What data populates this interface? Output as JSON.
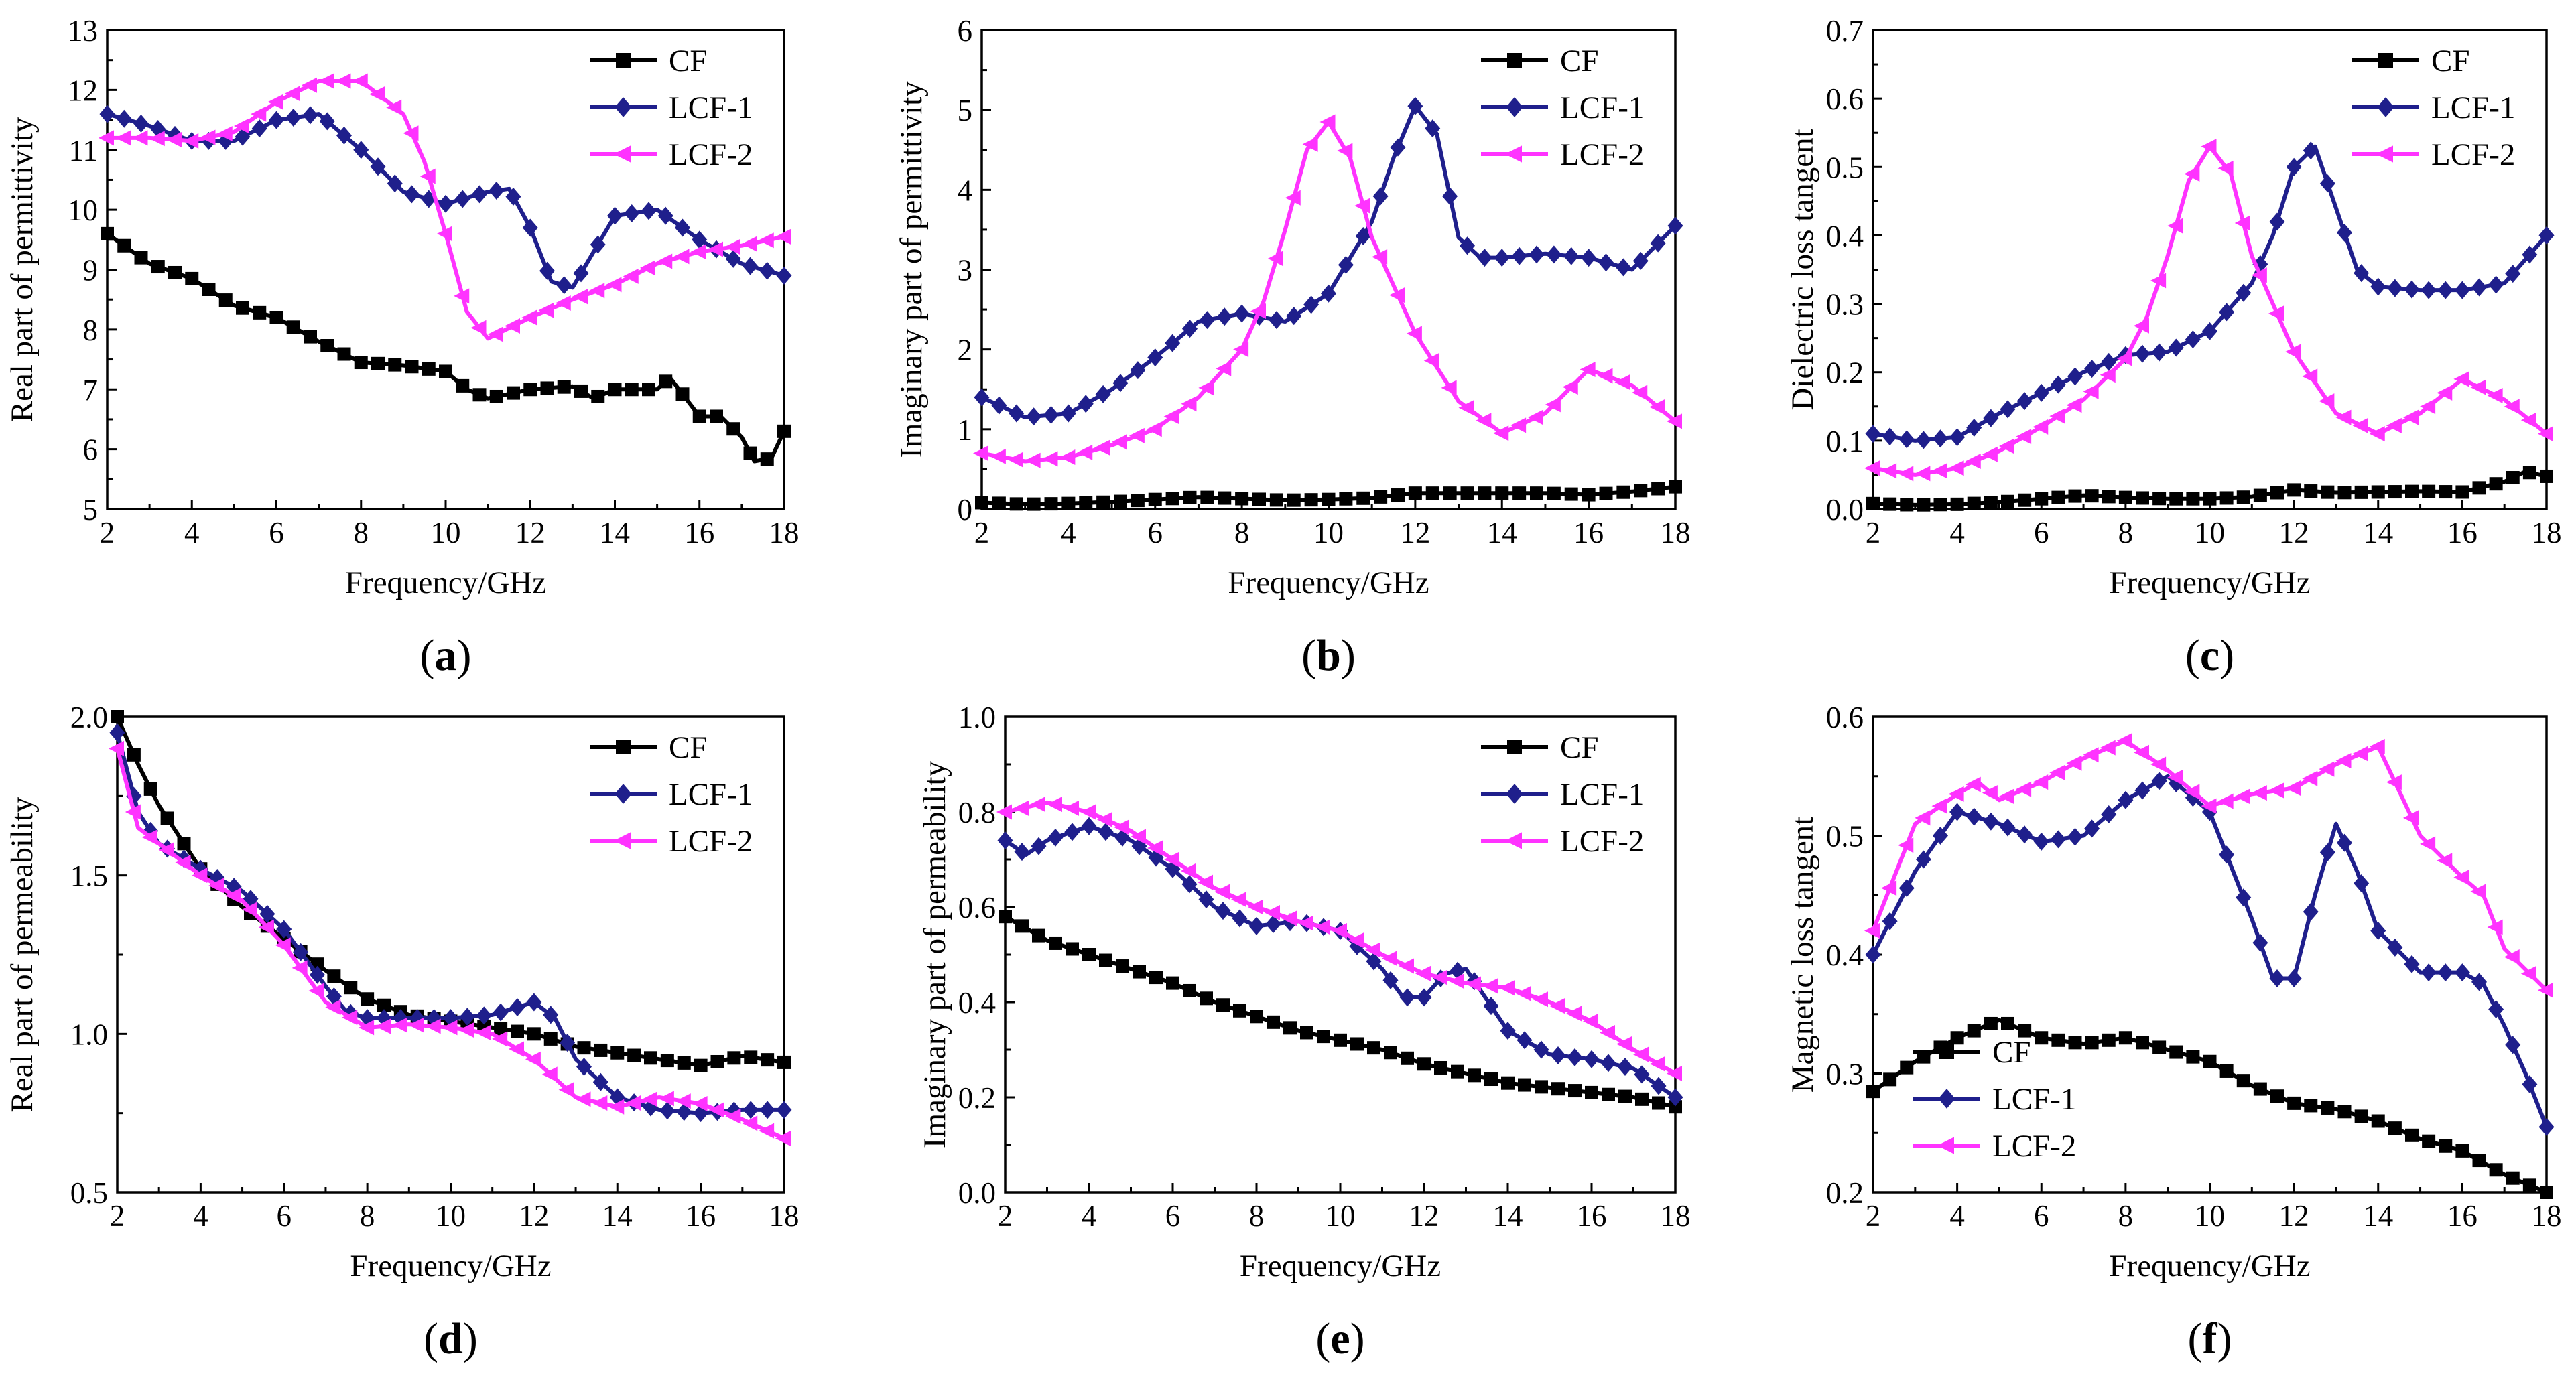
{
  "chart_data": [
    {
      "panel": "(a)",
      "panel_letter": "a",
      "type": "line",
      "xlabel": "Frequency/GHz",
      "ylabel": "Real part of permittivity",
      "xlim": [
        2,
        18
      ],
      "ylim": [
        5,
        13
      ],
      "xticks": [
        2,
        4,
        6,
        8,
        10,
        12,
        14,
        16,
        18
      ],
      "yticks": [
        5,
        6,
        7,
        8,
        9,
        10,
        11,
        12,
        13
      ],
      "legend_position": "top-right",
      "series": [
        {
          "name": "CF",
          "color": "#000000",
          "marker": "square",
          "x": [
            2,
            3,
            4,
            5,
            6,
            7,
            8,
            9,
            10,
            10.5,
            11,
            12,
            13,
            13.5,
            14,
            15,
            15.3,
            16,
            16.5,
            17,
            17.3,
            17.7,
            18
          ],
          "y": [
            9.6,
            9.1,
            8.85,
            8.4,
            8.2,
            7.8,
            7.45,
            7.4,
            7.3,
            7.0,
            6.85,
            7.0,
            7.05,
            6.85,
            7.0,
            7.0,
            7.2,
            6.55,
            6.55,
            6.2,
            5.8,
            5.85,
            6.3
          ]
        },
        {
          "name": "LCF-1",
          "color": "#1f1f8c",
          "marker": "diamond",
          "x": [
            2,
            3,
            4,
            5,
            6,
            7,
            8,
            9,
            10,
            11,
            11.5,
            12,
            12.5,
            13,
            14,
            15,
            16,
            17,
            18
          ],
          "y": [
            11.6,
            11.4,
            11.15,
            11.15,
            11.5,
            11.6,
            11.0,
            10.3,
            10.1,
            10.3,
            10.35,
            9.7,
            8.8,
            8.7,
            9.9,
            10.0,
            9.5,
            9.1,
            8.9
          ]
        },
        {
          "name": "LCF-2",
          "color": "#ff33ff",
          "marker": "triangle-left",
          "x": [
            2,
            3,
            4,
            5,
            6,
            7,
            8,
            9,
            9.5,
            10,
            10.5,
            11,
            12,
            13,
            14,
            15,
            16,
            17,
            18
          ],
          "y": [
            11.2,
            11.2,
            11.15,
            11.3,
            11.8,
            12.15,
            12.15,
            11.6,
            10.8,
            9.6,
            8.3,
            7.85,
            8.2,
            8.5,
            8.75,
            9.1,
            9.3,
            9.4,
            9.55
          ]
        }
      ]
    },
    {
      "panel": "(b)",
      "panel_letter": "b",
      "type": "line",
      "xlabel": "Frequency/GHz",
      "ylabel": "Imaginary part of permittivity",
      "xlim": [
        2,
        18
      ],
      "ylim": [
        0,
        6
      ],
      "xticks": [
        2,
        4,
        6,
        8,
        10,
        12,
        14,
        16,
        18
      ],
      "yticks": [
        0,
        1,
        2,
        3,
        4,
        5,
        6
      ],
      "legend_position": "top-right",
      "series": [
        {
          "name": "CF",
          "color": "#000000",
          "marker": "square",
          "x": [
            2,
            3,
            4,
            5,
            6,
            7,
            8,
            9,
            10,
            11,
            12,
            13,
            14,
            15,
            16,
            17,
            18
          ],
          "y": [
            0.08,
            0.06,
            0.07,
            0.09,
            0.12,
            0.15,
            0.13,
            0.11,
            0.12,
            0.14,
            0.2,
            0.2,
            0.2,
            0.2,
            0.18,
            0.22,
            0.28
          ]
        },
        {
          "name": "LCF-1",
          "color": "#1f1f8c",
          "marker": "diamond",
          "x": [
            2,
            3,
            4,
            5,
            6,
            7,
            8,
            9,
            10,
            11,
            11.5,
            12,
            12.5,
            13,
            13.5,
            14,
            15,
            16,
            17,
            18
          ],
          "y": [
            1.4,
            1.15,
            1.2,
            1.5,
            1.9,
            2.35,
            2.45,
            2.35,
            2.7,
            3.6,
            4.4,
            5.05,
            4.7,
            3.4,
            3.15,
            3.15,
            3.2,
            3.15,
            3.0,
            3.55
          ]
        },
        {
          "name": "LCF-2",
          "color": "#ff33ff",
          "marker": "triangle-left",
          "x": [
            2,
            3,
            4,
            5,
            6,
            7,
            8,
            8.5,
            9,
            9.5,
            10,
            10.5,
            11,
            12,
            13,
            14,
            15,
            16,
            17,
            18
          ],
          "y": [
            0.7,
            0.6,
            0.65,
            0.8,
            1.0,
            1.4,
            2.0,
            2.6,
            3.5,
            4.5,
            4.85,
            4.4,
            3.4,
            2.2,
            1.35,
            0.95,
            1.2,
            1.75,
            1.55,
            1.1
          ]
        }
      ]
    },
    {
      "panel": "(c)",
      "panel_letter": "c",
      "type": "line",
      "xlabel": "Frequency/GHz",
      "ylabel": "Dielectric loss tangent",
      "xlim": [
        2,
        18
      ],
      "ylim": [
        0,
        0.7
      ],
      "xticks": [
        2,
        4,
        6,
        8,
        10,
        12,
        14,
        16,
        18
      ],
      "yticks": [
        0.0,
        0.1,
        0.2,
        0.3,
        0.4,
        0.5,
        0.6,
        0.7
      ],
      "ytick_labels": [
        "0.0",
        "0.1",
        "0.2",
        "0.3",
        "0.4",
        "0.5",
        "0.6",
        "0.7"
      ],
      "legend_position": "top-right",
      "series": [
        {
          "name": "CF",
          "color": "#000000",
          "marker": "square",
          "x": [
            2,
            3,
            4,
            5,
            6,
            7,
            8,
            9,
            10,
            11,
            12,
            13,
            14,
            15,
            16,
            17,
            17.5,
            18
          ],
          "y": [
            0.008,
            0.006,
            0.007,
            0.01,
            0.015,
            0.02,
            0.017,
            0.015,
            0.015,
            0.018,
            0.028,
            0.024,
            0.025,
            0.026,
            0.025,
            0.04,
            0.055,
            0.048
          ]
        },
        {
          "name": "LCF-1",
          "color": "#1f1f8c",
          "marker": "diamond",
          "x": [
            2,
            3,
            4,
            5,
            6,
            7,
            8,
            9,
            10,
            11,
            11.5,
            12,
            12.5,
            13,
            13.5,
            14,
            15,
            16,
            17,
            18
          ],
          "y": [
            0.11,
            0.1,
            0.105,
            0.14,
            0.17,
            0.2,
            0.225,
            0.23,
            0.26,
            0.33,
            0.4,
            0.5,
            0.53,
            0.44,
            0.35,
            0.325,
            0.32,
            0.32,
            0.33,
            0.4
          ]
        },
        {
          "name": "LCF-2",
          "color": "#ff33ff",
          "marker": "triangle-left",
          "x": [
            2,
            3,
            4,
            5,
            6,
            7,
            8,
            8.5,
            9,
            9.5,
            10,
            10.5,
            11,
            12,
            13,
            14,
            15,
            16,
            17,
            18
          ],
          "y": [
            0.06,
            0.05,
            0.06,
            0.085,
            0.12,
            0.16,
            0.22,
            0.28,
            0.37,
            0.48,
            0.53,
            0.49,
            0.37,
            0.23,
            0.14,
            0.11,
            0.14,
            0.19,
            0.16,
            0.11
          ]
        }
      ]
    },
    {
      "panel": "(d)",
      "panel_letter": "d",
      "type": "line",
      "xlabel": "Frequency/GHz",
      "ylabel": "Real part of permeability",
      "xlim": [
        2,
        18
      ],
      "ylim": [
        0.5,
        2.0
      ],
      "xticks": [
        2,
        4,
        6,
        8,
        10,
        12,
        14,
        16,
        18
      ],
      "yticks": [
        0.5,
        1.0,
        1.5,
        2.0
      ],
      "ytick_labels": [
        "0.5",
        "1.0",
        "1.5",
        "2.0"
      ],
      "legend_position": "top-right",
      "series": [
        {
          "name": "CF",
          "color": "#000000",
          "marker": "square",
          "x": [
            2,
            2.5,
            3,
            4,
            5,
            6,
            7,
            8,
            9,
            10,
            11,
            12,
            13,
            14,
            15,
            16,
            17,
            18
          ],
          "y": [
            2.0,
            1.85,
            1.72,
            1.52,
            1.4,
            1.3,
            1.2,
            1.11,
            1.06,
            1.04,
            1.02,
            1.0,
            0.96,
            0.94,
            0.92,
            0.9,
            0.93,
            0.91
          ]
        },
        {
          "name": "LCF-1",
          "color": "#1f1f8c",
          "marker": "diamond",
          "x": [
            2,
            2.5,
            3,
            4,
            5,
            6,
            7,
            7.5,
            8,
            9,
            10,
            11,
            12,
            12.5,
            13,
            14,
            15,
            16,
            17,
            18
          ],
          "y": [
            1.95,
            1.7,
            1.6,
            1.52,
            1.45,
            1.33,
            1.15,
            1.07,
            1.05,
            1.05,
            1.05,
            1.06,
            1.1,
            1.05,
            0.92,
            0.8,
            0.76,
            0.75,
            0.76,
            0.76
          ]
        },
        {
          "name": "LCF-2",
          "color": "#ff33ff",
          "marker": "triangle-left",
          "x": [
            2,
            2.5,
            3,
            4,
            5,
            6,
            7,
            8,
            9,
            10,
            11,
            12,
            13,
            14,
            15,
            16,
            17,
            18
          ],
          "y": [
            1.9,
            1.65,
            1.6,
            1.5,
            1.42,
            1.28,
            1.1,
            1.02,
            1.03,
            1.02,
            1.0,
            0.92,
            0.8,
            0.77,
            0.8,
            0.78,
            0.73,
            0.67
          ]
        }
      ]
    },
    {
      "panel": "(e)",
      "panel_letter": "e",
      "type": "line",
      "xlabel": "Frequency/GHz",
      "ylabel": "Imaginary part of permeability",
      "xlim": [
        2,
        18
      ],
      "ylim": [
        0,
        1.0
      ],
      "xticks": [
        2,
        4,
        6,
        8,
        10,
        12,
        14,
        16,
        18
      ],
      "yticks": [
        0.0,
        0.2,
        0.4,
        0.6,
        0.8,
        1.0
      ],
      "ytick_labels": [
        "0.0",
        "0.2",
        "0.4",
        "0.6",
        "0.8",
        "1.0"
      ],
      "legend_position": "top-right",
      "series": [
        {
          "name": "CF",
          "color": "#000000",
          "marker": "square",
          "x": [
            2,
            3,
            4,
            5,
            6,
            7,
            8,
            9,
            10,
            11,
            12,
            13,
            14,
            15,
            16,
            17,
            18
          ],
          "y": [
            0.58,
            0.53,
            0.5,
            0.47,
            0.44,
            0.4,
            0.37,
            0.34,
            0.32,
            0.3,
            0.27,
            0.25,
            0.23,
            0.22,
            0.21,
            0.2,
            0.18
          ]
        },
        {
          "name": "LCF-1",
          "color": "#1f1f8c",
          "marker": "diamond",
          "x": [
            2,
            2.5,
            3,
            4,
            5,
            6,
            7,
            8,
            9,
            10,
            11,
            11.5,
            12,
            12.5,
            13,
            14,
            15,
            16,
            17,
            18
          ],
          "y": [
            0.74,
            0.71,
            0.74,
            0.77,
            0.74,
            0.68,
            0.6,
            0.56,
            0.57,
            0.55,
            0.47,
            0.41,
            0.41,
            0.46,
            0.47,
            0.34,
            0.29,
            0.28,
            0.26,
            0.2
          ]
        },
        {
          "name": "LCF-2",
          "color": "#ff33ff",
          "marker": "triangle-left",
          "x": [
            2,
            3,
            4,
            5,
            6,
            7,
            8,
            9,
            10,
            11,
            12,
            13,
            14,
            15,
            16,
            17,
            18
          ],
          "y": [
            0.8,
            0.82,
            0.8,
            0.76,
            0.7,
            0.64,
            0.6,
            0.57,
            0.55,
            0.5,
            0.46,
            0.44,
            0.43,
            0.4,
            0.36,
            0.3,
            0.25
          ]
        }
      ]
    },
    {
      "panel": "(f)",
      "panel_letter": "f",
      "type": "line",
      "xlabel": "Frequency/GHz",
      "ylabel": "Magnetic loss tangent",
      "xlim": [
        2,
        18
      ],
      "ylim": [
        0.2,
        0.6
      ],
      "xticks": [
        2,
        4,
        6,
        8,
        10,
        12,
        14,
        16,
        18
      ],
      "yticks": [
        0.2,
        0.3,
        0.4,
        0.5,
        0.6
      ],
      "ytick_labels": [
        "0.2",
        "0.3",
        "0.4",
        "0.5",
        "0.6"
      ],
      "legend_position": "bottom-left",
      "series": [
        {
          "name": "CF",
          "color": "#000000",
          "marker": "square",
          "x": [
            2,
            3,
            4,
            5,
            6,
            7,
            8,
            9,
            10,
            11,
            12,
            13,
            14,
            15,
            16,
            17,
            18
          ],
          "y": [
            0.285,
            0.31,
            0.33,
            0.345,
            0.33,
            0.325,
            0.33,
            0.32,
            0.31,
            0.29,
            0.275,
            0.27,
            0.26,
            0.245,
            0.235,
            0.215,
            0.2
          ]
        },
        {
          "name": "LCF-1",
          "color": "#1f1f8c",
          "marker": "diamond",
          "x": [
            2,
            3,
            4,
            5,
            6,
            7,
            8,
            9,
            10,
            11,
            11.5,
            12,
            12.5,
            13,
            13.5,
            14,
            15,
            16,
            16.5,
            17,
            17.5,
            18
          ],
          "y": [
            0.4,
            0.47,
            0.52,
            0.51,
            0.495,
            0.5,
            0.53,
            0.55,
            0.52,
            0.43,
            0.38,
            0.38,
            0.45,
            0.51,
            0.47,
            0.42,
            0.385,
            0.385,
            0.375,
            0.34,
            0.3,
            0.255
          ]
        },
        {
          "name": "LCF-2",
          "color": "#ff33ff",
          "marker": "triangle-left",
          "x": [
            2,
            3,
            4,
            4.5,
            5,
            6,
            7,
            8,
            9,
            10,
            11,
            12,
            13,
            14,
            15,
            16,
            16.5,
            17,
            18
          ],
          "y": [
            0.42,
            0.51,
            0.535,
            0.545,
            0.53,
            0.545,
            0.565,
            0.58,
            0.555,
            0.525,
            0.535,
            0.54,
            0.56,
            0.575,
            0.5,
            0.465,
            0.45,
            0.405,
            0.37
          ]
        }
      ]
    }
  ]
}
